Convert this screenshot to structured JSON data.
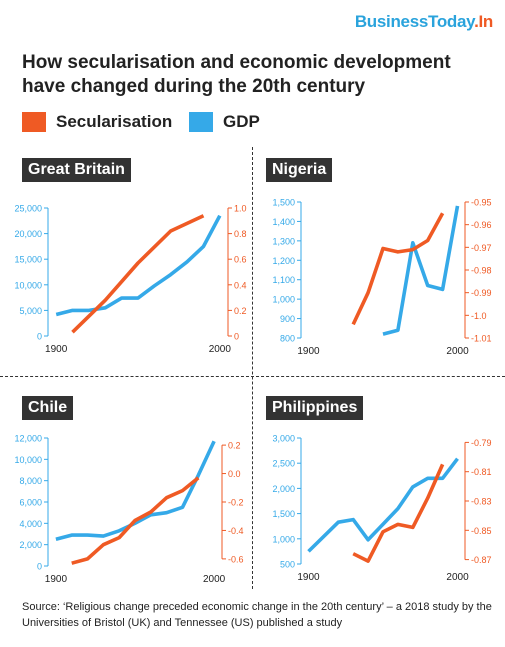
{
  "brand": {
    "name": "BusinessToday",
    "suffix": ".In"
  },
  "title": "How secularisation and economic development have changed during the 20th century",
  "legend": [
    {
      "label": "Secularisation",
      "color": "#ef5a24"
    },
    {
      "label": "GDP",
      "color": "#35a9e8"
    }
  ],
  "source": "Source: ‘Religious change preceded economic change in the 20th century’ – a 2018 study by the Universities of Bristol (UK) and Tennessee (US) published a study",
  "chart_data": [
    {
      "type": "line",
      "title": "Great Britain",
      "x_ticks": [
        1900,
        2000
      ],
      "xlim": [
        1895,
        2005
      ],
      "left_axis": {
        "ylim": [
          0,
          25000
        ],
        "ticks": [
          0,
          5000,
          10000,
          15000,
          20000,
          25000
        ],
        "tick_labels": [
          "0",
          "5,000",
          "10,000",
          "15,000",
          "20,000",
          "25,000"
        ],
        "color": "#35a9e8"
      },
      "right_axis": {
        "ylim": [
          0,
          1.0
        ],
        "ticks": [
          0,
          0.2,
          0.4,
          0.6,
          0.8,
          1.0
        ],
        "tick_labels": [
          "0",
          "0.2",
          "0.4",
          "0.6",
          "0.8",
          "1.0"
        ],
        "color": "#ef5a24"
      },
      "series": [
        {
          "axis": "left",
          "color": "#35a9e8",
          "x": [
            1900,
            1910,
            1920,
            1930,
            1940,
            1950,
            1960,
            1970,
            1980,
            1990,
            2000
          ],
          "y": [
            4200,
            5000,
            5000,
            5500,
            7400,
            7400,
            9800,
            12000,
            14500,
            17500,
            23500
          ]
        },
        {
          "axis": "right",
          "color": "#ef5a24",
          "x": [
            1910,
            1930,
            1950,
            1970,
            1990
          ],
          "y": [
            0.03,
            0.28,
            0.57,
            0.82,
            0.94
          ]
        }
      ]
    },
    {
      "type": "line",
      "title": "Nigeria",
      "x_ticks": [
        1900,
        2000
      ],
      "xlim": [
        1895,
        2005
      ],
      "left_axis": {
        "ylim": [
          800,
          1500
        ],
        "ticks": [
          800,
          900,
          1000,
          1100,
          1200,
          1300,
          1400,
          1500
        ],
        "tick_labels": [
          "800",
          "900",
          "1,000",
          "1,100",
          "1,200",
          "1,300",
          "1,400",
          "1,500"
        ],
        "color": "#35a9e8"
      },
      "right_axis": {
        "ylim": [
          -1.01,
          -0.95
        ],
        "ticks": [
          -1.01,
          -1.0,
          -0.99,
          -0.98,
          -0.97,
          -0.96,
          -0.95
        ],
        "tick_labels": [
          "-1.01",
          "-1.0",
          "-0.99",
          "-0.98",
          "-0.97",
          "-0.96",
          "-0.95"
        ],
        "color": "#ef5a24"
      },
      "series": [
        {
          "axis": "left",
          "color": "#35a9e8",
          "x": [
            1950,
            1960,
            1970,
            1980,
            1990,
            2000
          ],
          "y": [
            820,
            840,
            1290,
            1070,
            1050,
            1480
          ]
        },
        {
          "axis": "right",
          "color": "#ef5a24",
          "x": [
            1930,
            1940,
            1950,
            1960,
            1970,
            1980,
            1990
          ],
          "y": [
            -1.004,
            -0.99,
            -0.9705,
            -0.972,
            -0.971,
            -0.967,
            -0.955
          ]
        }
      ]
    },
    {
      "type": "line",
      "title": "Chile",
      "x_ticks": [
        1900,
        2000
      ],
      "xlim": [
        1895,
        2005
      ],
      "left_axis": {
        "ylim": [
          0,
          12000
        ],
        "ticks": [
          0,
          2000,
          4000,
          6000,
          8000,
          10000,
          12000
        ],
        "tick_labels": [
          "0",
          "2,000",
          "4,000",
          "6,000",
          "8,000",
          "10,000",
          "12,000"
        ],
        "color": "#35a9e8"
      },
      "right_axis": {
        "ylim": [
          -0.65,
          0.25
        ],
        "ticks": [
          -0.6,
          -0.4,
          -0.2,
          0.0,
          0.2
        ],
        "tick_labels": [
          "-0.6",
          "-0.4",
          "-0.2",
          "0.0",
          "0.2"
        ],
        "color": "#ef5a24"
      },
      "series": [
        {
          "axis": "left",
          "color": "#35a9e8",
          "x": [
            1900,
            1910,
            1920,
            1930,
            1940,
            1950,
            1960,
            1970,
            1980,
            1990,
            2000
          ],
          "y": [
            2500,
            2900,
            2900,
            2800,
            3300,
            4000,
            4800,
            5000,
            5500,
            8500,
            11700
          ]
        },
        {
          "axis": "right",
          "color": "#ef5a24",
          "x": [
            1910,
            1920,
            1930,
            1940,
            1950,
            1960,
            1970,
            1980,
            1990
          ],
          "y": [
            -0.63,
            -0.6,
            -0.5,
            -0.45,
            -0.33,
            -0.27,
            -0.17,
            -0.12,
            -0.03
          ]
        }
      ]
    },
    {
      "type": "line",
      "title": "Philippines",
      "x_ticks": [
        1900,
        2000
      ],
      "xlim": [
        1895,
        2005
      ],
      "left_axis": {
        "ylim": [
          500,
          3000
        ],
        "ticks": [
          500,
          1000,
          1500,
          2000,
          2500,
          3000
        ],
        "tick_labels": [
          "500",
          "1,000",
          "1,500",
          "2,000",
          "2,500",
          "3,000"
        ],
        "color": "#35a9e8"
      },
      "right_axis": {
        "ylim": [
          -0.873,
          -0.787
        ],
        "ticks": [
          -0.87,
          -0.85,
          -0.83,
          -0.81,
          -0.79
        ],
        "tick_labels": [
          "-0.87",
          "-0.85",
          "-0.83",
          "-0.81",
          "-0.79"
        ],
        "color": "#ef5a24"
      },
      "series": [
        {
          "axis": "left",
          "color": "#35a9e8",
          "x": [
            1900,
            1920,
            1930,
            1940,
            1950,
            1960,
            1970,
            1980,
            1990,
            2000
          ],
          "y": [
            750,
            1330,
            1380,
            980,
            1290,
            1600,
            2030,
            2200,
            2200,
            2590
          ]
        },
        {
          "axis": "right",
          "color": "#ef5a24",
          "x": [
            1930,
            1940,
            1950,
            1960,
            1970,
            1980,
            1990
          ],
          "y": [
            -0.866,
            -0.871,
            -0.851,
            -0.846,
            -0.848,
            -0.828,
            -0.805
          ]
        }
      ]
    }
  ]
}
